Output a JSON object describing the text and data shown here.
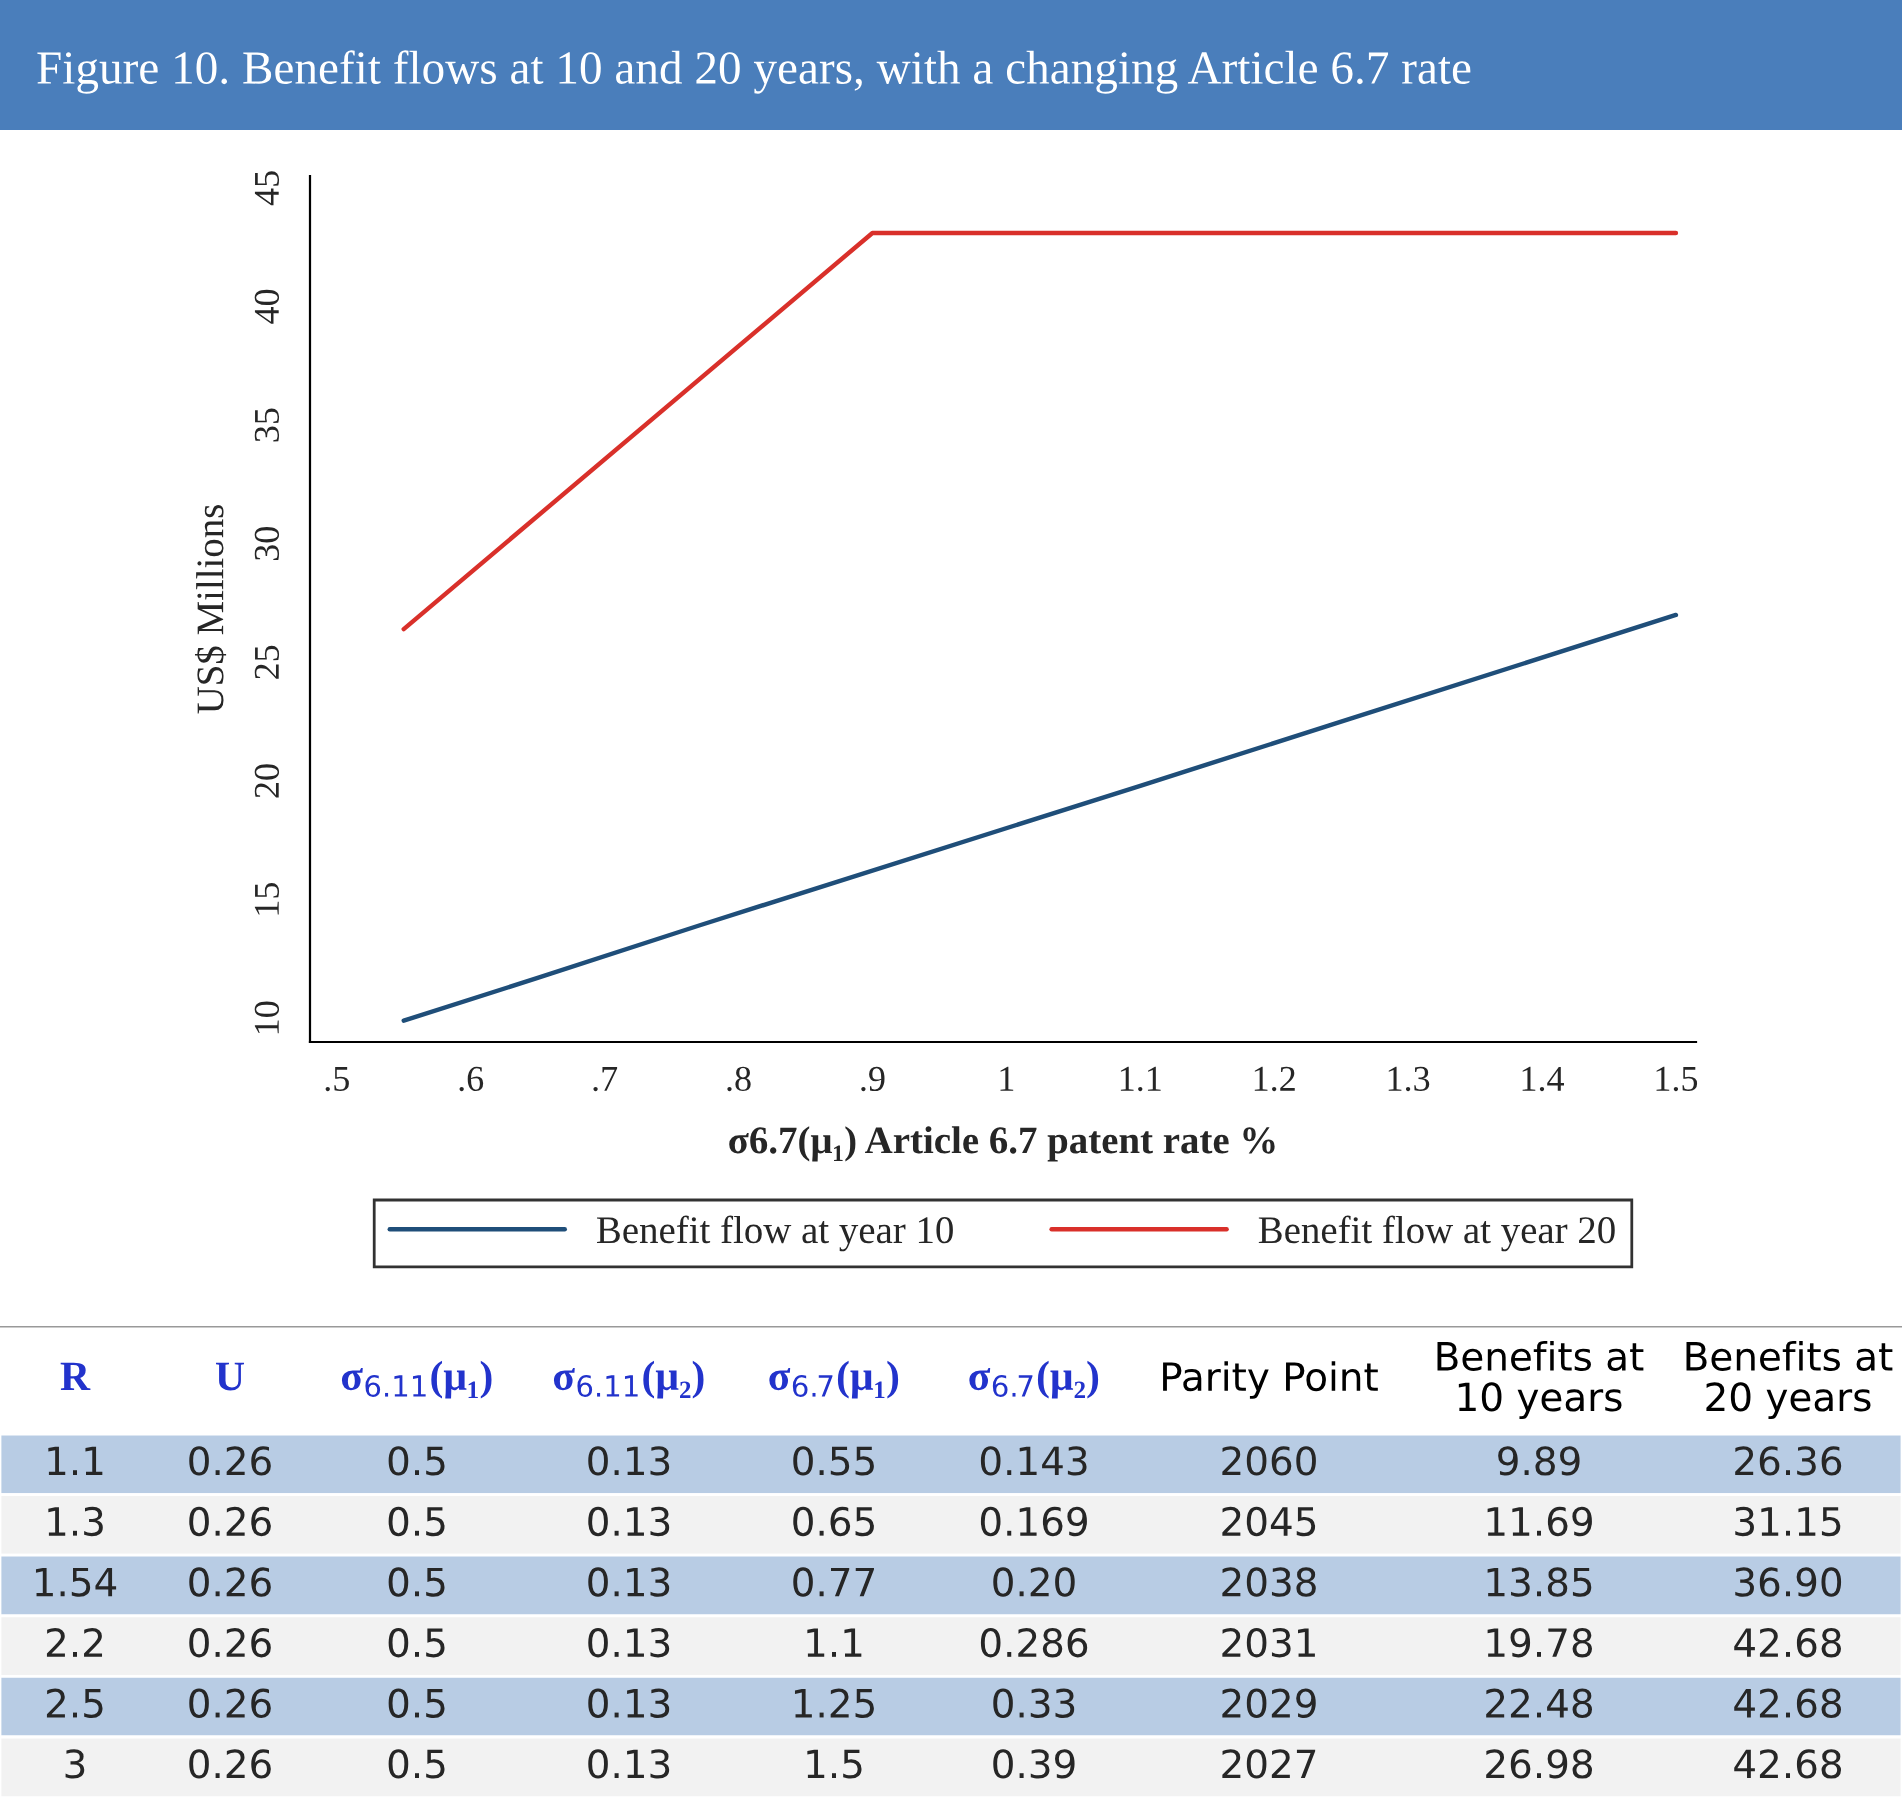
{
  "chart_data": [
    {
      "type": "line",
      "title": "Figure 10. Benefit flows at 10 and 20 years, with a changing Article 6.7 rate",
      "xlabel": "σ6.7(μ₁) Article 6.7 patent rate %",
      "ylabel": "US$ Millions",
      "xlim": [
        0.48,
        1.515
      ],
      "ylim": [
        9,
        45.5
      ],
      "xticks": [
        {
          "value": 0.5,
          "label": ".5"
        },
        {
          "value": 0.6,
          "label": ".6"
        },
        {
          "value": 0.7,
          "label": ".7"
        },
        {
          "value": 0.8,
          "label": ".8"
        },
        {
          "value": 0.9,
          "label": ".9"
        },
        1,
        1.1,
        1.2,
        1.3,
        1.4,
        1.5
      ],
      "yticks": [
        10,
        15,
        20,
        25,
        30,
        35,
        40,
        45
      ],
      "grid": false,
      "legend": "bottom",
      "marker": "none",
      "line_style": "solid",
      "series": [
        {
          "name": "Benefit flow at year 10",
          "color": "#1f4e79",
          "x": [
            0.55,
            0.65,
            0.77,
            1.1,
            1.25,
            1.5
          ],
          "values": [
            9.9,
            11.7,
            13.9,
            19.8,
            22.5,
            27.0
          ]
        },
        {
          "name": "Benefit flow at year 20",
          "color": "#d9302a",
          "x": [
            0.55,
            0.9,
            1.5
          ],
          "values": [
            26.4,
            43.1,
            43.1
          ]
        }
      ]
    },
    {
      "type": "other",
      "categories": [
        "R",
        "U",
        "σ$_{6.11}$(μ₁)",
        "σ$_{6.11}$(μ₂)",
        "σ$_{6.7}$(μ₁)",
        "σ$_{6.7}$(μ₂)",
        "Parity Point",
        "Benefits at\n10 years",
        "Benefits at\n20 years"
      ],
      "cell_labels": [
        [
          "1.1",
          "0.26",
          "0.5",
          "0.13",
          "0.55",
          "0.143",
          "2060",
          "9.89",
          "26.36"
        ],
        [
          "1.3",
          "0.26",
          "0.5",
          "0.13",
          "0.65",
          "0.169",
          "2045",
          "11.69",
          "31.15"
        ],
        [
          "1.54",
          "0.26",
          "0.5",
          "0.13",
          "0.77",
          "0.20",
          "2038",
          "13.85",
          "36.90"
        ],
        [
          "2.2",
          "0.26",
          "0.5",
          "0.13",
          "1.1",
          "0.286",
          "2031",
          "19.78",
          "42.68"
        ],
        [
          "2.5",
          "0.26",
          "0.5",
          "0.13",
          "1.25",
          "0.33",
          "2029",
          "22.48",
          "42.68"
        ],
        [
          "3",
          "0.26",
          "0.5",
          "0.13",
          "1.5",
          "0.39",
          "2027",
          "26.98",
          "42.68"
        ]
      ]
    }
  ]
}
